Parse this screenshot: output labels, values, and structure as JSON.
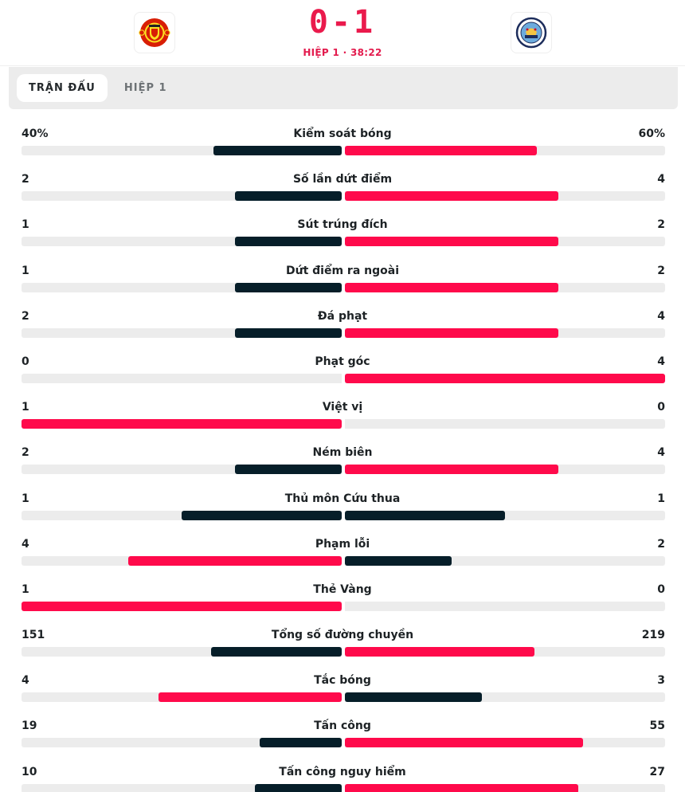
{
  "header": {
    "home_team": {
      "name": "Manchester United",
      "logo_icon": "man-utd-crest-icon"
    },
    "away_team": {
      "name": "Manchester City",
      "logo_icon": "man-city-crest-icon"
    },
    "score": "0-1",
    "period": "HIỆP 1 · 38:22"
  },
  "tabs": [
    {
      "label": "TRẬN ĐẤU",
      "active": true
    },
    {
      "label": "HIỆP 1",
      "active": false
    }
  ],
  "colors": {
    "accent_red": "#ff0a4b",
    "dark_bar": "#061e29",
    "track": "#ececec",
    "score_red": "#ea1a4c"
  },
  "stats": [
    {
      "label": "Kiểm soát bóng",
      "home": "40%",
      "away": "60%",
      "home_num": 40,
      "away_num": 60
    },
    {
      "label": "Số lần dứt điểm",
      "home": "2",
      "away": "4",
      "home_num": 2,
      "away_num": 4
    },
    {
      "label": "Sút trúng đích",
      "home": "1",
      "away": "2",
      "home_num": 1,
      "away_num": 2
    },
    {
      "label": "Dứt điểm ra ngoài",
      "home": "1",
      "away": "2",
      "home_num": 1,
      "away_num": 2
    },
    {
      "label": "Đá phạt",
      "home": "2",
      "away": "4",
      "home_num": 2,
      "away_num": 4
    },
    {
      "label": "Phạt góc",
      "home": "0",
      "away": "4",
      "home_num": 0,
      "away_num": 4
    },
    {
      "label": "Việt vị",
      "home": "1",
      "away": "0",
      "home_num": 1,
      "away_num": 0
    },
    {
      "label": "Ném biên",
      "home": "2",
      "away": "4",
      "home_num": 2,
      "away_num": 4
    },
    {
      "label": "Thủ môn Cứu thua",
      "home": "1",
      "away": "1",
      "home_num": 1,
      "away_num": 1
    },
    {
      "label": "Phạm lỗi",
      "home": "4",
      "away": "2",
      "home_num": 4,
      "away_num": 2
    },
    {
      "label": "Thẻ Vàng",
      "home": "1",
      "away": "0",
      "home_num": 1,
      "away_num": 0
    },
    {
      "label": "Tổng số đường chuyền",
      "home": "151",
      "away": "219",
      "home_num": 151,
      "away_num": 219
    },
    {
      "label": "Tắc bóng",
      "home": "4",
      "away": "3",
      "home_num": 4,
      "away_num": 3
    },
    {
      "label": "Tấn công",
      "home": "19",
      "away": "55",
      "home_num": 19,
      "away_num": 55
    },
    {
      "label": "Tấn công nguy hiểm",
      "home": "10",
      "away": "27",
      "home_num": 10,
      "away_num": 27
    }
  ]
}
